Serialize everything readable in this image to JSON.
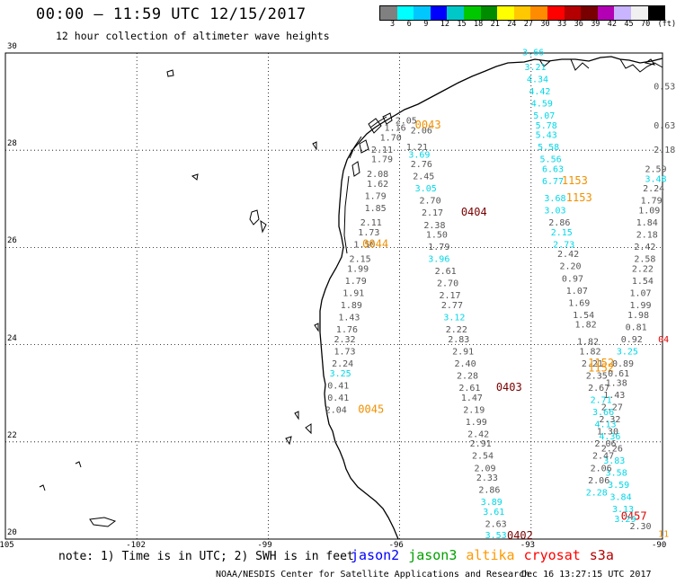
{
  "header": {
    "title": "00:00 – 11:59 UTC 12/15/2017",
    "subtitle": "12 hour collection of altimeter wave heights"
  },
  "color_scale": {
    "colors": [
      "#808080",
      "#00ffff",
      "#00c8ff",
      "#0000ff",
      "#00c8c8",
      "#00c800",
      "#008c00",
      "#ffff00",
      "#ffc800",
      "#ff8c00",
      "#ff0000",
      "#b40000",
      "#780000",
      "#b400b4",
      "#c8b4ff",
      "#f0f0f0",
      "#000000"
    ],
    "labels": [
      "3",
      "6",
      "9",
      "12",
      "15",
      "18",
      "21",
      "24",
      "27",
      "30",
      "33",
      "36",
      "39",
      "42",
      "45",
      "70",
      "(ft)"
    ]
  },
  "axes": {
    "x_ticks": [
      "-105",
      "-102",
      "-99",
      "-96",
      "-93",
      "-90"
    ],
    "y_ticks": [
      "30",
      "28",
      "26",
      "24",
      "22",
      "20"
    ]
  },
  "legend": [
    {
      "name": "jason2",
      "color": "#0000ff"
    },
    {
      "name": "jason3",
      "color": "#00a000"
    },
    {
      "name": "altika",
      "color": "#ff9900"
    },
    {
      "name": "cryosat",
      "color": "#ff0000"
    },
    {
      "name": "s3a",
      "color": "#b40000"
    }
  ],
  "footer": {
    "note": "note: 1) Time is in UTC; 2) SWH is in feet",
    "credit": "NOAA/NESDIS Center for Satellite Applications and Research",
    "stamp": "Dec 16 13:27:15 UTC 2017"
  },
  "colors": {
    "gray": "#555555",
    "cyan": "#00d8e8",
    "orange": "#f09000",
    "darkred": "#7a0000",
    "red": "#e00000"
  },
  "observations": [
    {
      "lon": -96.1,
      "lat": 28.55,
      "text": "2.05",
      "c": "gray"
    },
    {
      "lon": -96.35,
      "lat": 28.4,
      "text": "1.16",
      "c": "gray"
    },
    {
      "lon": -95.75,
      "lat": 28.35,
      "text": "2.06",
      "c": "gray"
    },
    {
      "lon": -96.45,
      "lat": 28.2,
      "text": "1.70",
      "c": "gray"
    },
    {
      "lon": -95.85,
      "lat": 28.0,
      "text": "1.21",
      "c": "gray"
    },
    {
      "lon": -96.65,
      "lat": 27.95,
      "text": "2.11",
      "c": "gray"
    },
    {
      "lon": -95.8,
      "lat": 27.85,
      "text": "3.69",
      "c": "cyan"
    },
    {
      "lon": -96.65,
      "lat": 27.75,
      "text": "1.79",
      "c": "gray"
    },
    {
      "lon": -95.75,
      "lat": 27.65,
      "text": "2.76",
      "c": "gray"
    },
    {
      "lon": -96.75,
      "lat": 27.45,
      "text": "2.08",
      "c": "gray"
    },
    {
      "lon": -95.7,
      "lat": 27.4,
      "text": "2.45",
      "c": "gray"
    },
    {
      "lon": -96.75,
      "lat": 27.25,
      "text": "1.62",
      "c": "gray"
    },
    {
      "lon": -95.65,
      "lat": 27.15,
      "text": "3.05",
      "c": "cyan"
    },
    {
      "lon": -96.8,
      "lat": 27.0,
      "text": "1.79",
      "c": "gray"
    },
    {
      "lon": -95.55,
      "lat": 26.9,
      "text": "2.70",
      "c": "gray"
    },
    {
      "lon": -96.8,
      "lat": 26.75,
      "text": "1.85",
      "c": "gray"
    },
    {
      "lon": -95.5,
      "lat": 26.65,
      "text": "2.17",
      "c": "gray"
    },
    {
      "lon": -96.9,
      "lat": 26.45,
      "text": "2.11",
      "c": "gray"
    },
    {
      "lon": -95.45,
      "lat": 26.4,
      "text": "2.38",
      "c": "gray"
    },
    {
      "lon": -96.95,
      "lat": 26.25,
      "text": "1.73",
      "c": "gray"
    },
    {
      "lon": -95.4,
      "lat": 26.2,
      "text": "1.50",
      "c": "gray"
    },
    {
      "lon": -97.05,
      "lat": 26.0,
      "text": "1.50",
      "c": "gray"
    },
    {
      "lon": -95.35,
      "lat": 25.95,
      "text": "1.79",
      "c": "gray"
    },
    {
      "lon": -97.15,
      "lat": 25.7,
      "text": "2.15",
      "c": "gray"
    },
    {
      "lon": -95.35,
      "lat": 25.7,
      "text": "3.96",
      "c": "cyan"
    },
    {
      "lon": -97.2,
      "lat": 25.5,
      "text": "1.99",
      "c": "gray"
    },
    {
      "lon": -95.2,
      "lat": 25.45,
      "text": "2.61",
      "c": "gray"
    },
    {
      "lon": -97.25,
      "lat": 25.25,
      "text": "1.79",
      "c": "gray"
    },
    {
      "lon": -95.15,
      "lat": 25.2,
      "text": "2.70",
      "c": "gray"
    },
    {
      "lon": -97.3,
      "lat": 25.0,
      "text": "1.91",
      "c": "gray"
    },
    {
      "lon": -95.1,
      "lat": 24.95,
      "text": "2.17",
      "c": "gray"
    },
    {
      "lon": -97.35,
      "lat": 24.75,
      "text": "1.89",
      "c": "gray"
    },
    {
      "lon": -95.05,
      "lat": 24.75,
      "text": "2.77",
      "c": "gray"
    },
    {
      "lon": -97.4,
      "lat": 24.5,
      "text": "1.43",
      "c": "gray"
    },
    {
      "lon": -95.0,
      "lat": 24.5,
      "text": "3.12",
      "c": "cyan"
    },
    {
      "lon": -97.45,
      "lat": 24.25,
      "text": "1.76",
      "c": "gray"
    },
    {
      "lon": -94.95,
      "lat": 24.25,
      "text": "2.22",
      "c": "gray"
    },
    {
      "lon": -97.5,
      "lat": 24.05,
      "text": "2.32",
      "c": "gray"
    },
    {
      "lon": -94.9,
      "lat": 24.05,
      "text": "2.83",
      "c": "gray"
    },
    {
      "lon": -97.5,
      "lat": 23.8,
      "text": "1.73",
      "c": "gray"
    },
    {
      "lon": -94.8,
      "lat": 23.8,
      "text": "2.91",
      "c": "gray"
    },
    {
      "lon": -97.55,
      "lat": 23.55,
      "text": "2.24",
      "c": "gray"
    },
    {
      "lon": -94.75,
      "lat": 23.55,
      "text": "2.40",
      "c": "gray"
    },
    {
      "lon": -97.6,
      "lat": 23.35,
      "text": "3.25",
      "c": "cyan"
    },
    {
      "lon": -94.7,
      "lat": 23.3,
      "text": "2.28",
      "c": "gray"
    },
    {
      "lon": -97.65,
      "lat": 23.1,
      "text": "0.41",
      "c": "gray"
    },
    {
      "lon": -94.65,
      "lat": 23.05,
      "text": "2.61",
      "c": "gray"
    },
    {
      "lon": -97.65,
      "lat": 22.85,
      "text": "0.41",
      "c": "gray"
    },
    {
      "lon": -94.6,
      "lat": 22.85,
      "text": "1.47",
      "c": "gray"
    },
    {
      "lon": -97.7,
      "lat": 22.6,
      "text": "2.04",
      "c": "gray"
    },
    {
      "lon": -94.55,
      "lat": 22.6,
      "text": "2.19",
      "c": "gray"
    },
    {
      "lon": -94.5,
      "lat": 22.35,
      "text": "1.99",
      "c": "gray"
    },
    {
      "lon": -94.45,
      "lat": 22.1,
      "text": "2.42",
      "c": "gray"
    },
    {
      "lon": -94.4,
      "lat": 21.9,
      "text": "2.91",
      "c": "gray"
    },
    {
      "lon": -94.35,
      "lat": 21.65,
      "text": "2.54",
      "c": "gray"
    },
    {
      "lon": -94.3,
      "lat": 21.4,
      "text": "2.09",
      "c": "gray"
    },
    {
      "lon": -94.25,
      "lat": 21.2,
      "text": "2.33",
      "c": "gray"
    },
    {
      "lon": -94.2,
      "lat": 20.95,
      "text": "2.86",
      "c": "gray"
    },
    {
      "lon": -94.15,
      "lat": 20.7,
      "text": "3.89",
      "c": "cyan"
    },
    {
      "lon": -94.1,
      "lat": 20.5,
      "text": "3.61",
      "c": "cyan"
    },
    {
      "lon": -94.05,
      "lat": 20.25,
      "text": "2.63",
      "c": "gray"
    },
    {
      "lon": -94.05,
      "lat": 20.02,
      "text": "3.53",
      "c": "cyan"
    },
    {
      "lon": -95.65,
      "lat": 28.45,
      "text": "0043",
      "c": "orange"
    },
    {
      "lon": -96.85,
      "lat": 26.0,
      "text": "0044",
      "c": "orange"
    },
    {
      "lon": -96.95,
      "lat": 22.6,
      "text": "0045",
      "c": "orange"
    },
    {
      "lon": -94.6,
      "lat": 26.65,
      "text": "0404",
      "c": "darkred"
    },
    {
      "lon": -93.8,
      "lat": 23.05,
      "text": "0403",
      "c": "darkred"
    },
    {
      "lon": -93.55,
      "lat": 20.0,
      "text": "0402",
      "c": "darkred"
    },
    {
      "lon": -92.3,
      "lat": 27.3,
      "text": "1153",
      "c": "orange"
    },
    {
      "lon": -92.2,
      "lat": 26.95,
      "text": "1153",
      "c": "orange"
    },
    {
      "lon": -91.7,
      "lat": 23.55,
      "text": "1152",
      "c": "orange"
    },
    {
      "lon": -91.7,
      "lat": 23.45,
      "text": "1152",
      "c": "orange"
    },
    {
      "lon": -90.95,
      "lat": 20.4,
      "text": "0457",
      "c": "red"
    },
    {
      "lon": -90.1,
      "lat": 24.05,
      "text": "04",
      "c": "red"
    },
    {
      "lon": -90.1,
      "lat": 20.05,
      "text": "11",
      "c": "orange"
    },
    {
      "lon": -93.2,
      "lat": 29.95,
      "text": "3.66",
      "c": "cyan"
    },
    {
      "lon": -93.15,
      "lat": 29.65,
      "text": "3.21",
      "c": "cyan"
    },
    {
      "lon": -93.1,
      "lat": 29.4,
      "text": "4.34",
      "c": "cyan"
    },
    {
      "lon": -93.05,
      "lat": 29.15,
      "text": "4.42",
      "c": "cyan"
    },
    {
      "lon": -93.0,
      "lat": 28.9,
      "text": "4.59",
      "c": "cyan"
    },
    {
      "lon": -92.95,
      "lat": 28.65,
      "text": "5.07",
      "c": "cyan"
    },
    {
      "lon": -92.9,
      "lat": 28.45,
      "text": "5.78",
      "c": "cyan"
    },
    {
      "lon": -92.9,
      "lat": 28.25,
      "text": "5.43",
      "c": "cyan"
    },
    {
      "lon": -92.85,
      "lat": 28.0,
      "text": "5.58",
      "c": "cyan"
    },
    {
      "lon": -92.8,
      "lat": 27.75,
      "text": "5.56",
      "c": "cyan"
    },
    {
      "lon": -92.75,
      "lat": 27.55,
      "text": "6.63",
      "c": "cyan"
    },
    {
      "lon": -92.75,
      "lat": 27.3,
      "text": "6.77",
      "c": "cyan"
    },
    {
      "lon": -92.7,
      "lat": 26.95,
      "text": "3.68",
      "c": "cyan"
    },
    {
      "lon": -92.7,
      "lat": 26.7,
      "text": "3.03",
      "c": "cyan"
    },
    {
      "lon": -92.6,
      "lat": 26.45,
      "text": "2.86",
      "c": "gray"
    },
    {
      "lon": -92.55,
      "lat": 26.25,
      "text": "2.15",
      "c": "cyan"
    },
    {
      "lon": -92.5,
      "lat": 26.0,
      "text": "2.73",
      "c": "cyan"
    },
    {
      "lon": -92.4,
      "lat": 25.8,
      "text": "2.42",
      "c": "gray"
    },
    {
      "lon": -92.35,
      "lat": 25.55,
      "text": "2.20",
      "c": "gray"
    },
    {
      "lon": -92.3,
      "lat": 25.3,
      "text": "0.97",
      "c": "gray"
    },
    {
      "lon": -92.2,
      "lat": 25.05,
      "text": "1.07",
      "c": "gray"
    },
    {
      "lon": -92.15,
      "lat": 24.8,
      "text": "1.69",
      "c": "gray"
    },
    {
      "lon": -92.05,
      "lat": 24.55,
      "text": "1.54",
      "c": "gray"
    },
    {
      "lon": -92.0,
      "lat": 24.35,
      "text": "1.82",
      "c": "gray"
    },
    {
      "lon": -91.95,
      "lat": 24.0,
      "text": "1.82",
      "c": "gray"
    },
    {
      "lon": -91.9,
      "lat": 23.8,
      "text": "1.82",
      "c": "gray"
    },
    {
      "lon": -91.85,
      "lat": 23.55,
      "text": "2.21",
      "c": "gray"
    },
    {
      "lon": -91.75,
      "lat": 23.3,
      "text": "2.35",
      "c": "gray"
    },
    {
      "lon": -91.7,
      "lat": 23.05,
      "text": "2.67",
      "c": "gray"
    },
    {
      "lon": -91.65,
      "lat": 22.8,
      "text": "2.71",
      "c": "cyan"
    },
    {
      "lon": -91.6,
      "lat": 22.55,
      "text": "3.66",
      "c": "cyan"
    },
    {
      "lon": -91.55,
      "lat": 22.3,
      "text": "4.13",
      "c": "cyan"
    },
    {
      "lon": -91.45,
      "lat": 22.05,
      "text": "4.36",
      "c": "cyan"
    },
    {
      "lon": -91.4,
      "lat": 21.8,
      "text": "2.26",
      "c": "gray"
    },
    {
      "lon": -91.35,
      "lat": 21.55,
      "text": "3.83",
      "c": "cyan"
    },
    {
      "lon": -91.3,
      "lat": 21.3,
      "text": "3.58",
      "c": "cyan"
    },
    {
      "lon": -91.25,
      "lat": 21.05,
      "text": "3.59",
      "c": "cyan"
    },
    {
      "lon": -91.2,
      "lat": 20.8,
      "text": "3.84",
      "c": "cyan"
    },
    {
      "lon": -91.15,
      "lat": 20.55,
      "text": "3.13",
      "c": "cyan"
    },
    {
      "lon": -91.1,
      "lat": 20.35,
      "text": "3.29",
      "c": "cyan"
    },
    {
      "lon": -90.2,
      "lat": 29.25,
      "text": "0.53",
      "c": "gray"
    },
    {
      "lon": -90.2,
      "lat": 28.45,
      "text": "0.63",
      "c": "gray"
    },
    {
      "lon": -90.2,
      "lat": 27.95,
      "text": "2.18",
      "c": "gray"
    },
    {
      "lon": -90.4,
      "lat": 27.55,
      "text": "2.59",
      "c": "gray"
    },
    {
      "lon": -90.4,
      "lat": 27.35,
      "text": "3.48",
      "c": "cyan"
    },
    {
      "lon": -90.45,
      "lat": 27.15,
      "text": "2.24",
      "c": "gray"
    },
    {
      "lon": -90.5,
      "lat": 26.9,
      "text": "1.79",
      "c": "gray"
    },
    {
      "lon": -90.55,
      "lat": 26.7,
      "text": "1.09",
      "c": "gray"
    },
    {
      "lon": -90.6,
      "lat": 26.45,
      "text": "1.84",
      "c": "gray"
    },
    {
      "lon": -90.6,
      "lat": 26.2,
      "text": "2.18",
      "c": "gray"
    },
    {
      "lon": -90.65,
      "lat": 25.95,
      "text": "2.42",
      "c": "gray"
    },
    {
      "lon": -90.65,
      "lat": 25.7,
      "text": "2.58",
      "c": "gray"
    },
    {
      "lon": -90.7,
      "lat": 25.5,
      "text": "2.22",
      "c": "gray"
    },
    {
      "lon": -90.7,
      "lat": 25.25,
      "text": "1.54",
      "c": "gray"
    },
    {
      "lon": -90.75,
      "lat": 25.0,
      "text": "1.07",
      "c": "gray"
    },
    {
      "lon": -90.75,
      "lat": 24.75,
      "text": "1.99",
      "c": "gray"
    },
    {
      "lon": -90.8,
      "lat": 24.55,
      "text": "1.98",
      "c": "gray"
    },
    {
      "lon": -90.85,
      "lat": 24.3,
      "text": "0.81",
      "c": "gray"
    },
    {
      "lon": -90.95,
      "lat": 24.05,
      "text": "0.92",
      "c": "gray"
    },
    {
      "lon": -91.05,
      "lat": 23.8,
      "text": "3.25",
      "c": "cyan"
    },
    {
      "lon": -91.15,
      "lat": 23.55,
      "text": "0.89",
      "c": "gray"
    },
    {
      "lon": -91.25,
      "lat": 23.35,
      "text": "0.61",
      "c": "gray"
    },
    {
      "lon": -91.3,
      "lat": 23.15,
      "text": "1.38",
      "c": "gray"
    },
    {
      "lon": -91.35,
      "lat": 22.9,
      "text": "1.43",
      "c": "gray"
    },
    {
      "lon": -91.4,
      "lat": 22.65,
      "text": "2.27",
      "c": "gray"
    },
    {
      "lon": -91.45,
      "lat": 22.4,
      "text": "2.32",
      "c": "gray"
    },
    {
      "lon": -91.5,
      "lat": 22.15,
      "text": "1.30",
      "c": "gray"
    },
    {
      "lon": -91.55,
      "lat": 21.9,
      "text": "2.06",
      "c": "gray"
    },
    {
      "lon": -91.6,
      "lat": 21.65,
      "text": "2.47",
      "c": "gray"
    },
    {
      "lon": -91.65,
      "lat": 21.4,
      "text": "2.06",
      "c": "gray"
    },
    {
      "lon": -91.7,
      "lat": 21.15,
      "text": "2.06",
      "c": "gray"
    },
    {
      "lon": -91.75,
      "lat": 20.9,
      "text": "2.28",
      "c": "cyan"
    },
    {
      "lon": -90.75,
      "lat": 20.2,
      "text": "2.30",
      "c": "gray"
    }
  ]
}
